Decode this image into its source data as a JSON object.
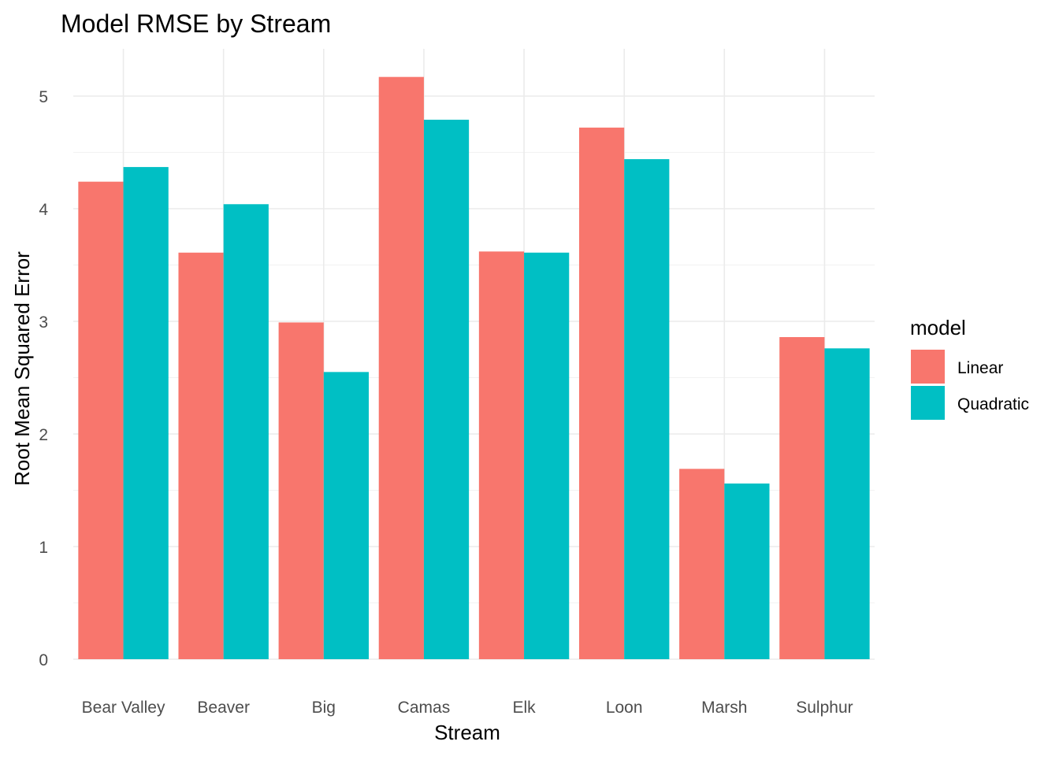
{
  "chart_data": {
    "type": "bar",
    "title": "Model RMSE by Stream",
    "xlabel": "Stream",
    "ylabel": "Root Mean Squared Error",
    "categories": [
      "Bear Valley",
      "Beaver",
      "Big",
      "Camas",
      "Elk",
      "Loon",
      "Marsh",
      "Sulphur"
    ],
    "series": [
      {
        "name": "Linear",
        "color": "#F8766D",
        "values": [
          4.24,
          3.61,
          2.99,
          5.17,
          3.62,
          4.72,
          1.69,
          2.86
        ]
      },
      {
        "name": "Quadratic",
        "color": "#00BFC4",
        "values": [
          4.37,
          4.04,
          2.55,
          4.79,
          3.61,
          4.44,
          1.56,
          2.76
        ]
      }
    ],
    "ylim": [
      0,
      5.2
    ],
    "y_ticks": [
      0,
      1,
      2,
      3,
      4,
      5
    ],
    "grid": true,
    "legend": {
      "title": "model",
      "position": "right"
    }
  }
}
